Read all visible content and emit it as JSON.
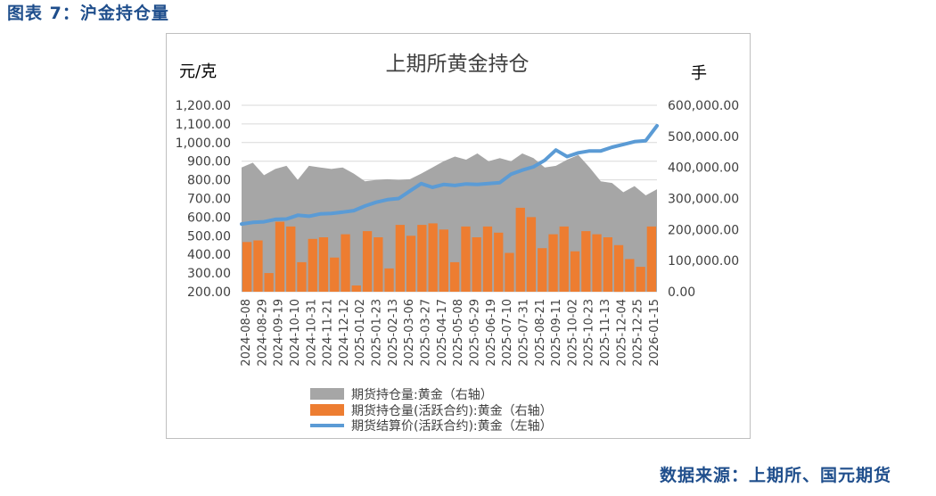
{
  "caption": "图表 7：沪金持仓量",
  "source": "数据来源：上期所、国元期货",
  "chart_data": {
    "type": "area",
    "title": "上期所黄金持仓",
    "ylabel_left": "元/克",
    "ylabel_right": "手",
    "ylim_left": [
      200,
      1200
    ],
    "ylim_right": [
      0,
      600000
    ],
    "left_ticks": [
      "1,200.00",
      "1,100.00",
      "1,000.00",
      "900.00",
      "800.00",
      "700.00",
      "600.00",
      "500.00",
      "400.00",
      "300.00",
      "200.00"
    ],
    "right_ticks": [
      "600,000.00",
      "500,000.00",
      "400,000.00",
      "300,000.00",
      "200,000.00",
      "100,000.00",
      "0.00"
    ],
    "x_tick_labels": [
      "2024-08-08",
      "2024-08-29",
      "2024-09-19",
      "2024-10-10",
      "2024-10-31",
      "2024-11-21",
      "2024-12-12",
      "2025-01-02",
      "2025-01-23",
      "2025-02-13",
      "2025-03-06",
      "2025-03-27",
      "2025-04-17",
      "2025-05-08",
      "2025-05-29",
      "2025-06-19",
      "2025-07-10",
      "2025-07-31",
      "2025-08-21",
      "2025-09-11",
      "2025-10-02",
      "2025-10-23",
      "2025-11-13",
      "2025-12-04",
      "2025-12-25",
      "2026-01-15"
    ],
    "series": [
      {
        "name": "期货持仓量:黄金（右轴）",
        "axis": "right",
        "style": "area",
        "color": "#a6a6a6",
        "values": [
          400000,
          415000,
          375000,
          395000,
          405000,
          360000,
          405000,
          400000,
          395000,
          400000,
          380000,
          355000,
          360000,
          362000,
          360000,
          362000,
          380000,
          400000,
          420000,
          435000,
          425000,
          445000,
          420000,
          430000,
          420000,
          445000,
          430000,
          400000,
          405000,
          425000,
          440000,
          400000,
          355000,
          350000,
          320000,
          340000,
          310000,
          330000
        ]
      },
      {
        "name": "期货持仓量(活跃合约):黄金（右轴）",
        "axis": "right",
        "style": "bar",
        "color": "#ed7d31",
        "values": [
          160000,
          165000,
          60000,
          225000,
          210000,
          95000,
          170000,
          175000,
          110000,
          185000,
          20000,
          195000,
          175000,
          75000,
          215000,
          180000,
          215000,
          220000,
          200000,
          95000,
          210000,
          175000,
          210000,
          190000,
          125000,
          270000,
          240000,
          140000,
          185000,
          210000,
          130000,
          195000,
          185000,
          175000,
          150000,
          105000,
          80000,
          210000
        ]
      },
      {
        "name": "期货结算价(活跃合约):黄金（左轴）",
        "axis": "left",
        "style": "line",
        "color": "#5b9bd5",
        "values": [
          563,
          572,
          575,
          588,
          590,
          610,
          605,
          617,
          620,
          627,
          635,
          660,
          680,
          694,
          700,
          740,
          780,
          760,
          775,
          770,
          778,
          775,
          780,
          785,
          830,
          852,
          870,
          905,
          960,
          925,
          945,
          955,
          955,
          975,
          990,
          1005,
          1010,
          1090
        ]
      }
    ],
    "legend_position": "bottom",
    "grid": true
  }
}
